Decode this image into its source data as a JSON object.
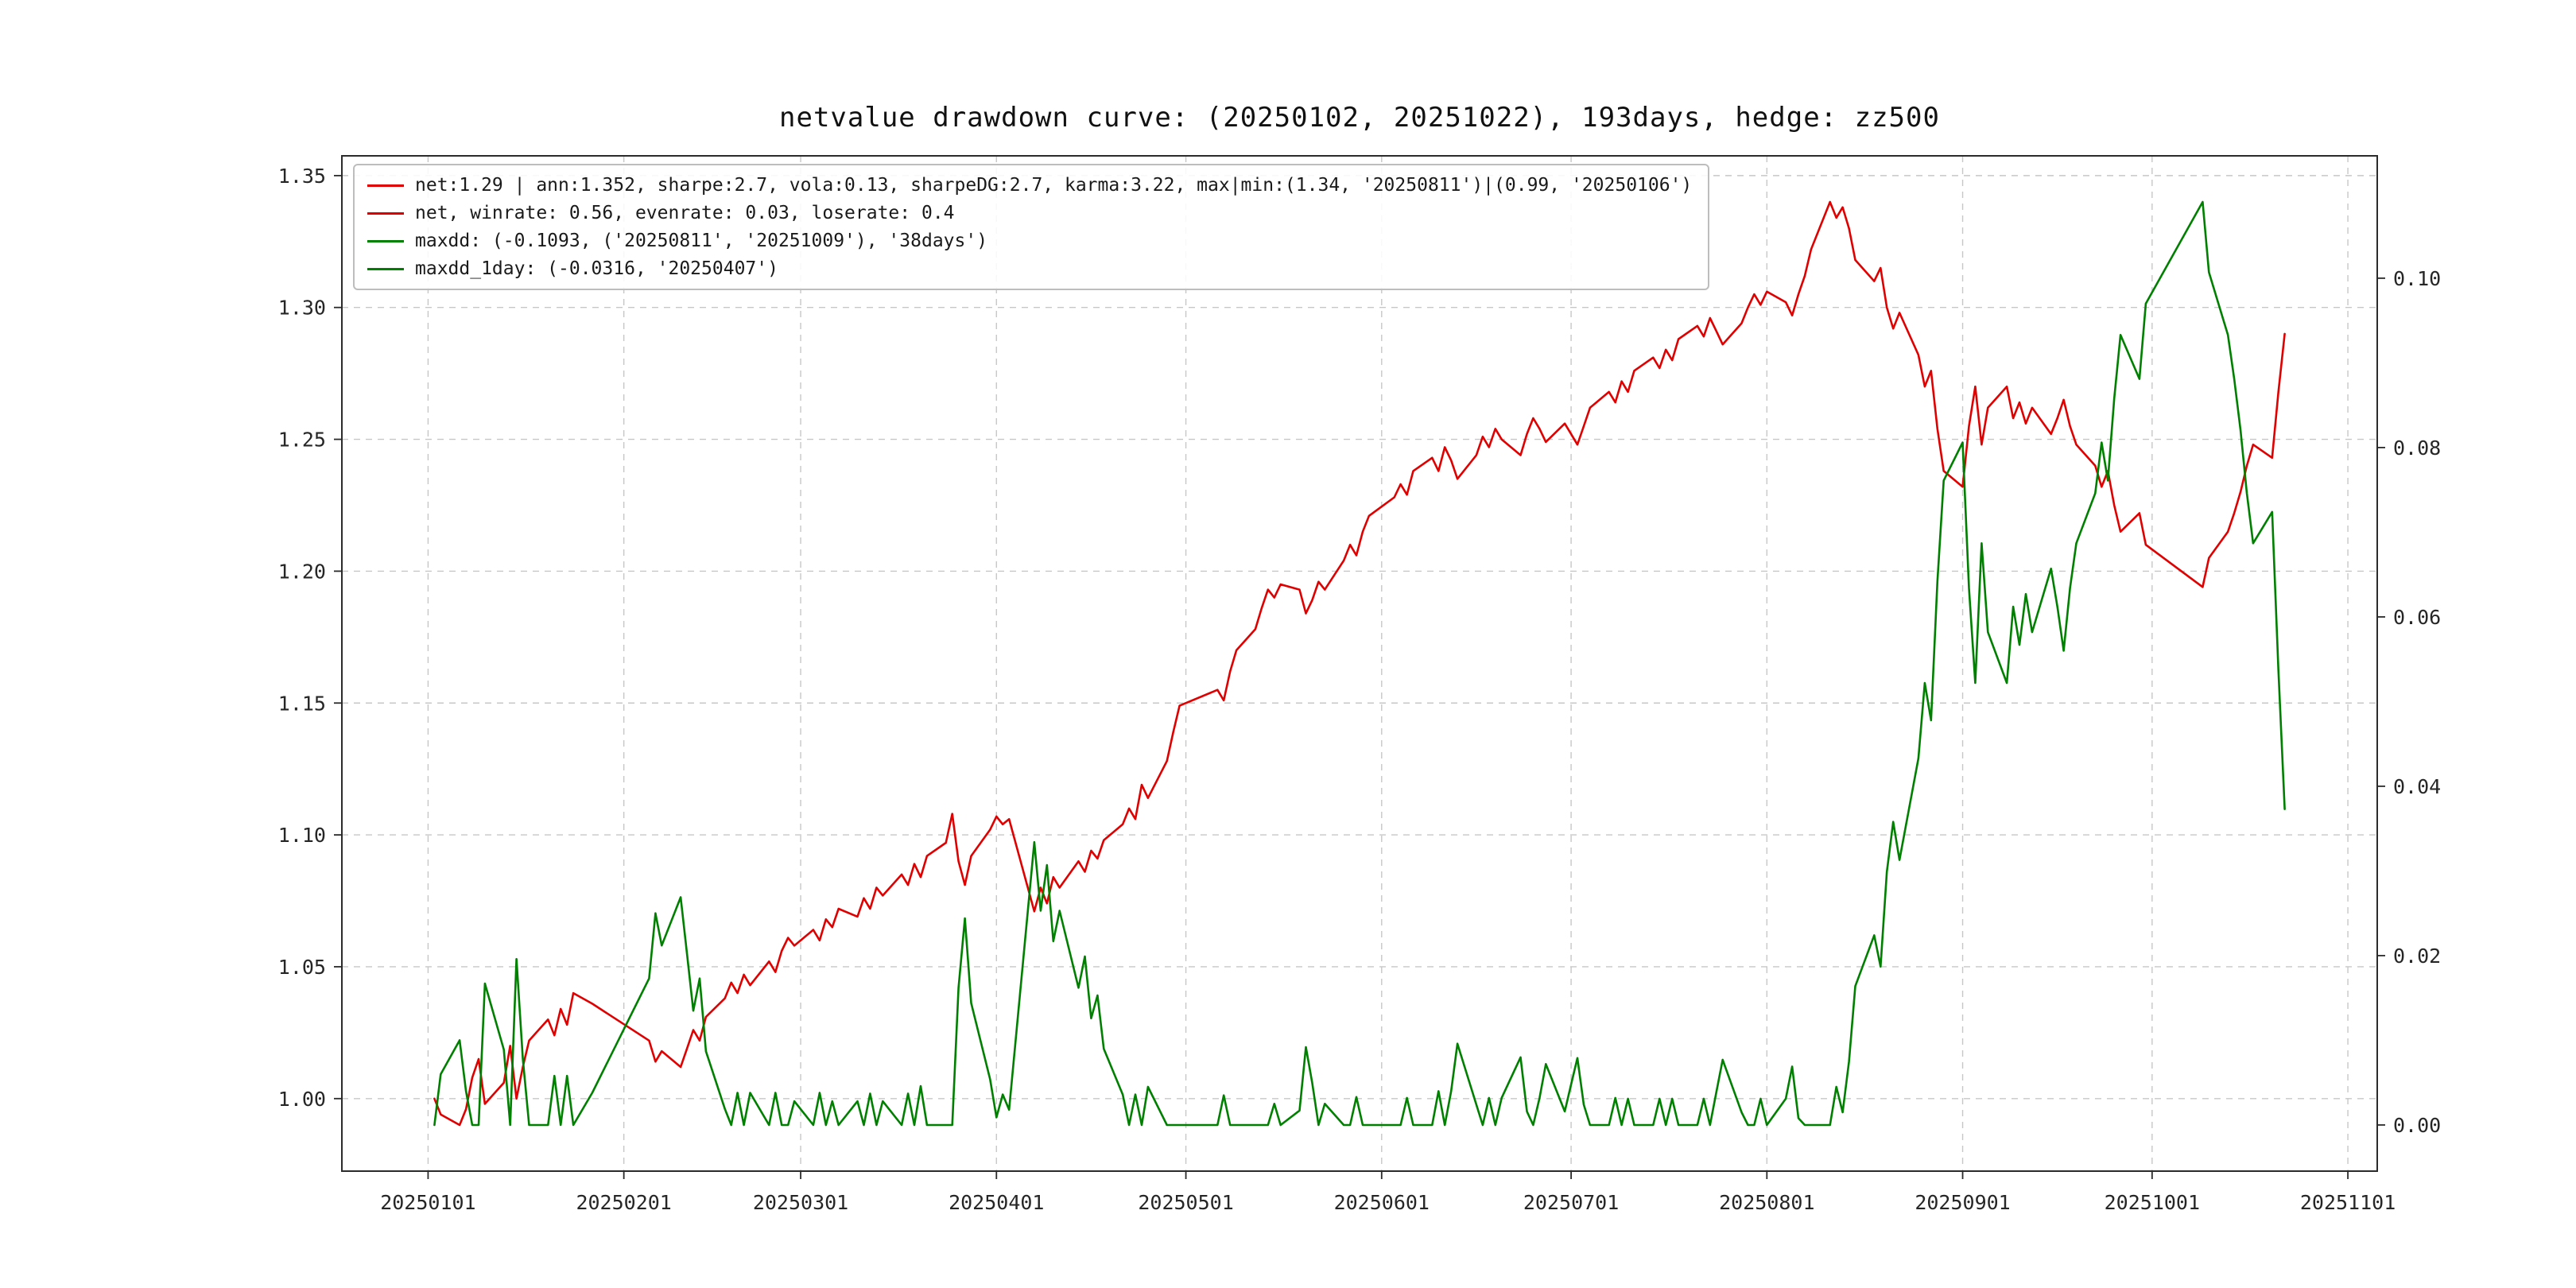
{
  "chart_data": {
    "type": "line",
    "title": "netvalue drawdown curve: (20250102, 20251022), 193days, hedge: zz500",
    "grid": "dashed",
    "legend_position": "upper-left",
    "colors": {
      "net": "#e00000",
      "drawdown": "#008000",
      "grid": "#c7c7c7",
      "spine": "#2b2b2b"
    },
    "legend": {
      "items": [
        {
          "label": "net:1.29 | ann:1.352, sharpe:2.7, vola:0.13, sharpeDG:2.7, karma:3.22, max|min:(1.34, '20250811')|(0.99, '20250106')",
          "color": "#e00000"
        },
        {
          "label": "net, winrate: 0.56, evenrate: 0.03, loserate: 0.4",
          "color": "#e00000"
        },
        {
          "label": "maxdd: (-0.1093, ('20250811', '20251009'), '38days')",
          "color": "#008000"
        },
        {
          "label": "maxdd_1day: (-0.0316, '20250407')",
          "color": "#008000"
        }
      ]
    },
    "axes": {
      "x_unit": "days_since_20250101",
      "x_lim": [
        -13.65,
        308.65
      ],
      "x_tick_offsets": [
        0,
        31,
        59,
        90,
        120,
        151,
        181,
        212,
        243,
        273,
        304
      ],
      "x_tick_labels": [
        "20250101",
        "20250201",
        "20250301",
        "20250401",
        "20250501",
        "20250601",
        "20250701",
        "20250801",
        "20250901",
        "20251001",
        "20251101"
      ],
      "left_lim": [
        0.9725,
        1.3575
      ],
      "left_ticks": [
        1.0,
        1.05,
        1.1,
        1.15,
        1.2,
        1.25,
        1.3,
        1.35
      ],
      "left_tick_labels": [
        "1.00",
        "1.05",
        "1.10",
        "1.15",
        "1.20",
        "1.25",
        "1.30",
        "1.35"
      ],
      "right_lim": [
        -0.00545,
        0.11445
      ],
      "right_ticks": [
        0.0,
        0.02,
        0.04,
        0.06,
        0.08,
        0.1
      ],
      "right_tick_labels": [
        "0.00",
        "0.02",
        "0.04",
        "0.06",
        "0.08",
        "0.10"
      ]
    },
    "x": [
      1,
      2,
      5,
      6,
      7,
      8,
      9,
      12,
      13,
      14,
      15,
      16,
      19,
      20,
      21,
      22,
      23,
      26,
      35,
      36,
      37,
      40,
      41,
      42,
      43,
      44,
      47,
      48,
      49,
      50,
      51,
      54,
      55,
      56,
      57,
      58,
      61,
      62,
      63,
      64,
      65,
      68,
      69,
      70,
      71,
      72,
      75,
      76,
      77,
      78,
      79,
      82,
      83,
      84,
      85,
      86,
      89,
      90,
      91,
      92,
      96,
      97,
      98,
      99,
      100,
      103,
      104,
      105,
      106,
      107,
      110,
      111,
      112,
      113,
      114,
      117,
      118,
      119,
      125,
      126,
      127,
      128,
      131,
      132,
      133,
      134,
      135,
      138,
      139,
      140,
      141,
      142,
      145,
      146,
      147,
      148,
      149,
      153,
      154,
      155,
      156,
      159,
      160,
      161,
      162,
      163,
      166,
      167,
      168,
      169,
      170,
      173,
      174,
      175,
      176,
      177,
      180,
      181,
      182,
      183,
      184,
      187,
      188,
      189,
      190,
      191,
      194,
      195,
      196,
      197,
      198,
      201,
      202,
      203,
      204,
      205,
      208,
      209,
      210,
      211,
      212,
      215,
      216,
      217,
      218,
      219,
      222,
      223,
      224,
      225,
      226,
      229,
      230,
      231,
      232,
      233,
      236,
      237,
      238,
      239,
      240,
      243,
      244,
      245,
      246,
      247,
      250,
      251,
      252,
      253,
      254,
      257,
      258,
      259,
      260,
      261,
      264,
      265,
      266,
      267,
      268,
      271,
      272,
      281,
      282,
      285,
      286,
      287,
      288,
      289,
      292,
      293,
      294
    ],
    "series": [
      {
        "name": "net",
        "axis": "left",
        "color": "#e00000",
        "values": [
          1.0,
          0.994,
          0.99,
          0.996,
          1.008,
          1.015,
          0.998,
          1.006,
          1.02,
          1.0,
          1.012,
          1.022,
          1.03,
          1.024,
          1.034,
          1.028,
          1.04,
          1.036,
          1.022,
          1.014,
          1.018,
          1.012,
          1.019,
          1.026,
          1.022,
          1.031,
          1.038,
          1.044,
          1.04,
          1.047,
          1.043,
          1.052,
          1.048,
          1.056,
          1.061,
          1.058,
          1.064,
          1.06,
          1.068,
          1.065,
          1.072,
          1.069,
          1.076,
          1.072,
          1.08,
          1.077,
          1.085,
          1.081,
          1.089,
          1.084,
          1.092,
          1.097,
          1.108,
          1.09,
          1.081,
          1.092,
          1.102,
          1.107,
          1.104,
          1.106,
          1.071,
          1.08,
          1.074,
          1.084,
          1.08,
          1.09,
          1.086,
          1.094,
          1.091,
          1.098,
          1.104,
          1.11,
          1.106,
          1.119,
          1.114,
          1.128,
          1.139,
          1.149,
          1.155,
          1.151,
          1.162,
          1.17,
          1.178,
          1.186,
          1.193,
          1.19,
          1.195,
          1.193,
          1.184,
          1.189,
          1.196,
          1.193,
          1.204,
          1.21,
          1.206,
          1.215,
          1.221,
          1.228,
          1.233,
          1.229,
          1.238,
          1.243,
          1.238,
          1.247,
          1.242,
          1.235,
          1.244,
          1.251,
          1.247,
          1.254,
          1.25,
          1.244,
          1.252,
          1.258,
          1.254,
          1.249,
          1.256,
          1.252,
          1.248,
          1.255,
          1.262,
          1.268,
          1.264,
          1.272,
          1.268,
          1.276,
          1.281,
          1.277,
          1.284,
          1.28,
          1.288,
          1.293,
          1.289,
          1.296,
          1.291,
          1.286,
          1.294,
          1.3,
          1.305,
          1.301,
          1.306,
          1.302,
          1.297,
          1.305,
          1.312,
          1.322,
          1.34,
          1.334,
          1.338,
          1.33,
          1.318,
          1.31,
          1.315,
          1.3,
          1.292,
          1.298,
          1.282,
          1.27,
          1.276,
          1.254,
          1.238,
          1.232,
          1.255,
          1.27,
          1.248,
          1.262,
          1.27,
          1.258,
          1.264,
          1.256,
          1.262,
          1.252,
          1.258,
          1.265,
          1.255,
          1.248,
          1.24,
          1.232,
          1.238,
          1.225,
          1.215,
          1.222,
          1.21,
          1.194,
          1.205,
          1.215,
          1.222,
          1.23,
          1.24,
          1.248,
          1.243,
          1.268,
          1.29
        ]
      },
      {
        "name": "drawdown",
        "axis": "right",
        "color": "#008000",
        "values": [
          0.0,
          0.006,
          0.01,
          0.004,
          0.0,
          0.0,
          0.0167,
          0.0089,
          0.0,
          0.0196,
          0.0078,
          0.0,
          0.0,
          0.0058,
          0.0,
          0.0058,
          0.0,
          0.0038,
          0.0173,
          0.025,
          0.0212,
          0.0269,
          0.0202,
          0.0135,
          0.0173,
          0.0087,
          0.0019,
          0.0,
          0.0038,
          0.0,
          0.0038,
          0.0,
          0.0038,
          0.0,
          0.0,
          0.0028,
          0.0,
          0.0038,
          0.0,
          0.0028,
          0.0,
          0.0028,
          0.0,
          0.0037,
          0.0,
          0.0028,
          0.0,
          0.0037,
          0.0,
          0.0046,
          0.0,
          0.0,
          0.0,
          0.0162,
          0.0244,
          0.0144,
          0.0054,
          0.0009,
          0.0036,
          0.0018,
          0.0334,
          0.0253,
          0.0307,
          0.0217,
          0.0253,
          0.0162,
          0.0199,
          0.0126,
          0.0153,
          0.009,
          0.0036,
          0.0,
          0.0036,
          0.0,
          0.0045,
          0.0,
          0.0,
          0.0,
          0.0,
          0.0035,
          0.0,
          0.0,
          0.0,
          0.0,
          0.0,
          0.0025,
          0.0,
          0.0017,
          0.0092,
          0.005,
          0.0,
          0.0025,
          0.0,
          0.0,
          0.0033,
          0.0,
          0.0,
          0.0,
          0.0,
          0.0032,
          0.0,
          0.0,
          0.004,
          0.0,
          0.004,
          0.0096,
          0.0024,
          0.0,
          0.0032,
          0.0,
          0.0032,
          0.008,
          0.0016,
          0.0,
          0.0032,
          0.0072,
          0.0016,
          0.0048,
          0.0079,
          0.0024,
          0.0,
          0.0,
          0.0032,
          0.0,
          0.0031,
          0.0,
          0.0,
          0.0031,
          0.0,
          0.0031,
          0.0,
          0.0,
          0.0031,
          0.0,
          0.0039,
          0.0077,
          0.0015,
          0.0,
          0.0,
          0.0031,
          0.0,
          0.0031,
          0.0069,
          0.0008,
          0.0,
          0.0,
          0.0,
          0.0045,
          0.0015,
          0.0075,
          0.0164,
          0.0224,
          0.0187,
          0.0299,
          0.0358,
          0.0313,
          0.0433,
          0.0522,
          0.0478,
          0.0642,
          0.0761,
          0.0806,
          0.0634,
          0.0522,
          0.0687,
          0.0582,
          0.0522,
          0.0612,
          0.0567,
          0.0627,
          0.0582,
          0.0657,
          0.0612,
          0.056,
          0.0634,
          0.0687,
          0.0746,
          0.0806,
          0.0761,
          0.0858,
          0.0933,
          0.0881,
          0.097,
          0.109,
          0.1007,
          0.0933,
          0.0881,
          0.0821,
          0.0746,
          0.0687,
          0.0724,
          0.0537,
          0.0373
        ]
      }
    ],
    "stats": {
      "net_final": "1.29",
      "ann": "1.352",
      "sharpe": "2.7",
      "vola": "0.13",
      "sharpeDG": "2.7",
      "karma": "3.22",
      "max": "(1.34, '20250811')",
      "min": "(0.99, '20250106')",
      "winrate": "0.56",
      "evenrate": "0.03",
      "loserate": "0.4",
      "maxdd": "(-0.1093, ('20250811', '20251009'), '38days')",
      "maxdd_1day": "(-0.0316, '20250407')"
    }
  }
}
